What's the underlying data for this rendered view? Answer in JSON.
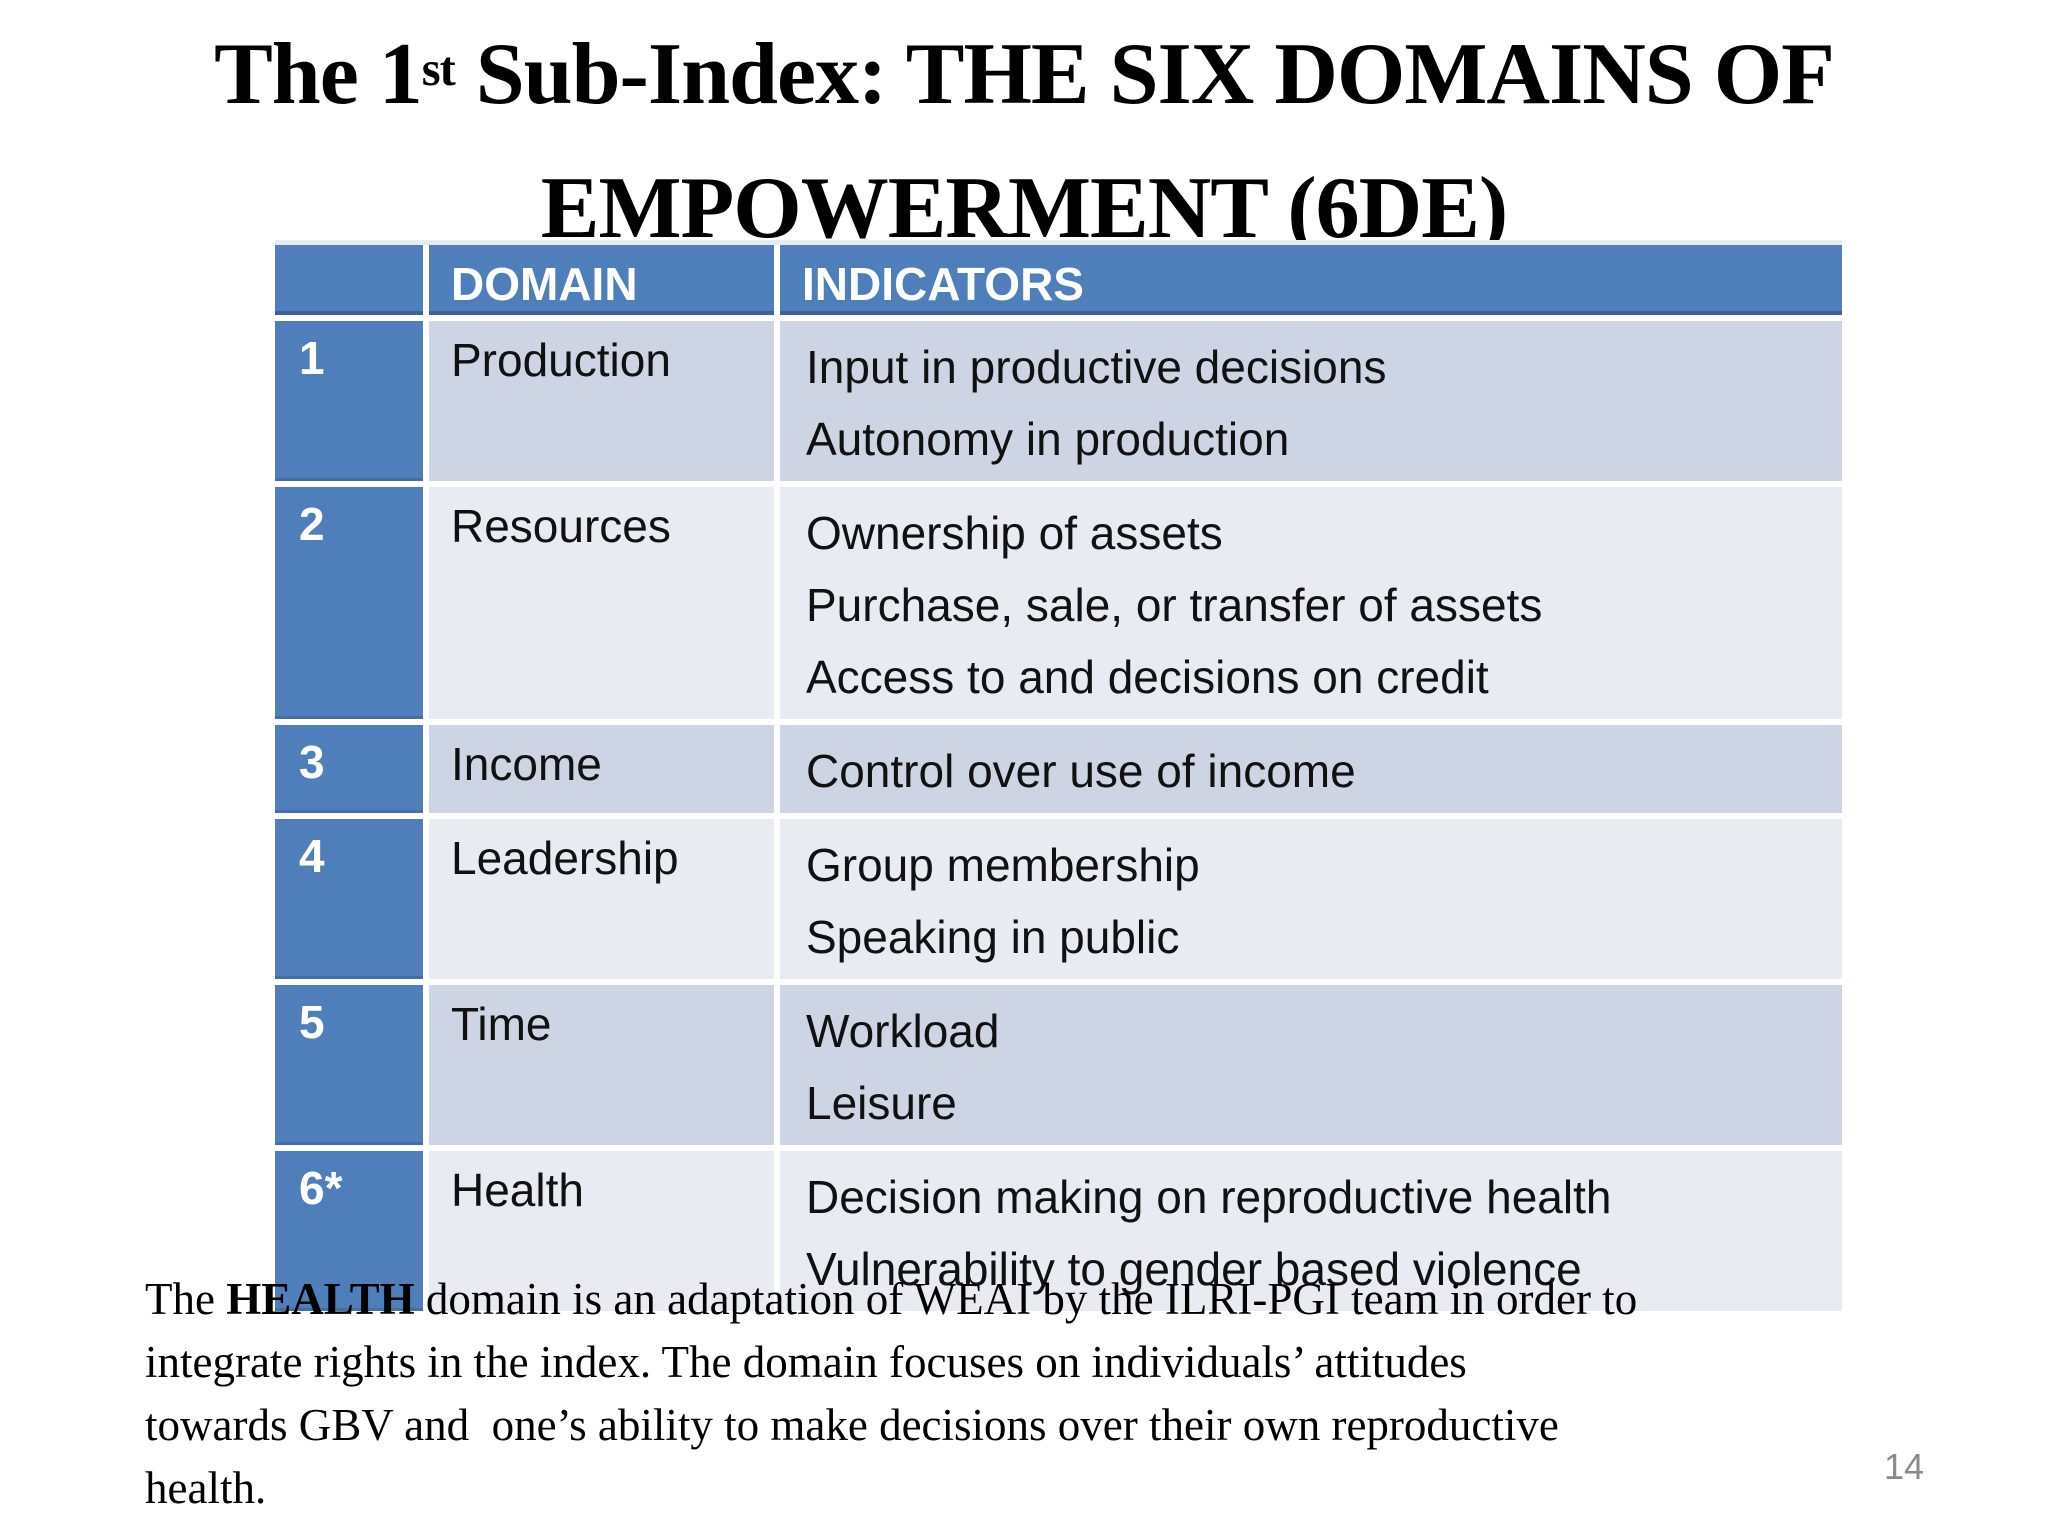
{
  "colors": {
    "header_blue": "#4e7fba",
    "band_dark": "#cdd4e3",
    "band_light": "#e8ebf2",
    "page_number_gray": "#8a8a8a"
  },
  "title": {
    "line1_pre": "The 1",
    "line1_sup": "st",
    "line1_post": " Sub-Index: THE SIX DOMAINS OF",
    "line2": "EMPOWERMENT (6DE)"
  },
  "table": {
    "headers": {
      "num": "",
      "domain": "DOMAIN",
      "indicators": "INDICATORS"
    },
    "rows": [
      {
        "num": "1",
        "domain": "Production",
        "indicators": [
          "Input in productive decisions",
          "Autonomy in production"
        ]
      },
      {
        "num": "2",
        "domain": "Resources",
        "indicators": [
          "Ownership of assets",
          "Purchase, sale, or transfer of assets",
          "Access to and decisions on credit"
        ]
      },
      {
        "num": "3",
        "domain": "Income",
        "indicators": [
          "Control over use of income"
        ]
      },
      {
        "num": "4",
        "domain": "Leadership",
        "indicators": [
          "Group membership",
          "Speaking in public"
        ]
      },
      {
        "num": "5",
        "domain": "Time",
        "indicators": [
          "Workload",
          "Leisure"
        ]
      },
      {
        "num": "6*",
        "domain": "Health",
        "indicators": [
          "Decision making on reproductive health",
          "Vulnerability to gender based violence"
        ]
      }
    ]
  },
  "footer": {
    "line1_pre": "The ",
    "line1_bold": "HEALTH",
    "line1_post": " domain is an adaptation of WEAI by the ILRI-PGI team in order to",
    "line2": "integrate rights in the index. The domain focuses on individuals’ attitudes",
    "line3": "towards GBV and  one’s ability to make decisions over their own reproductive",
    "line4": "health."
  },
  "page_number": "14"
}
